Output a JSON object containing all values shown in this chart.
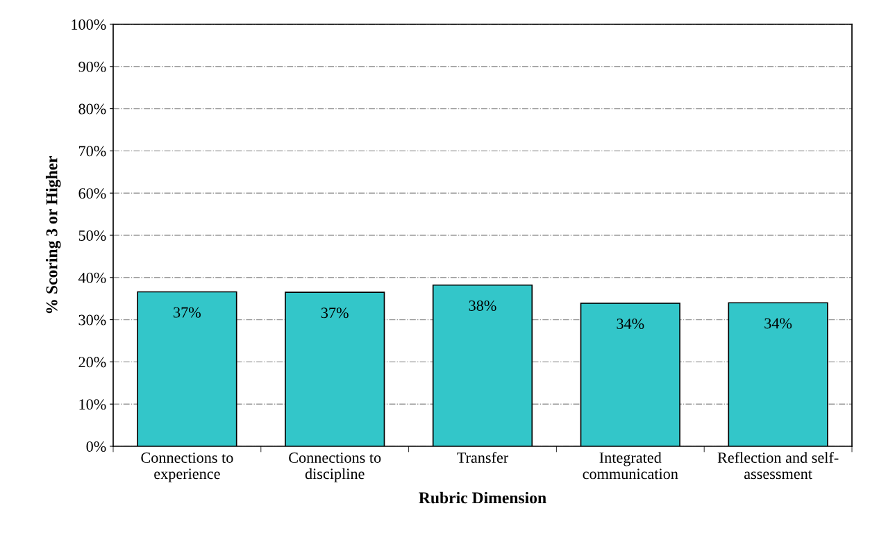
{
  "chart_data": {
    "type": "bar",
    "xlabel": "Rubric Dimension",
    "ylabel": "% Scoring 3 or Higher",
    "categories": [
      "Connections to\nexperience",
      "Connections to\ndiscipline",
      "Transfer",
      "Integrated\ncommunication",
      "Reflection and self-\nassessment"
    ],
    "values": [
      36.6,
      36.5,
      38.2,
      33.9,
      34.0
    ],
    "value_labels": [
      "37%",
      "37%",
      "38%",
      "34%",
      "34%"
    ],
    "color": "#33c6c9",
    "ylim": [
      0,
      100
    ],
    "yticks": [
      {
        "value": 0,
        "label": "0%"
      },
      {
        "value": 10,
        "label": "10%"
      },
      {
        "value": 20,
        "label": "20%"
      },
      {
        "value": 30,
        "label": "30%"
      },
      {
        "value": 40,
        "label": "40%"
      },
      {
        "value": 50,
        "label": "50%"
      },
      {
        "value": 60,
        "label": "60%"
      },
      {
        "value": 70,
        "label": "70%"
      },
      {
        "value": 80,
        "label": "80%"
      },
      {
        "value": 90,
        "label": "90%"
      },
      {
        "value": 100,
        "label": "100%"
      }
    ],
    "grid": "y"
  }
}
